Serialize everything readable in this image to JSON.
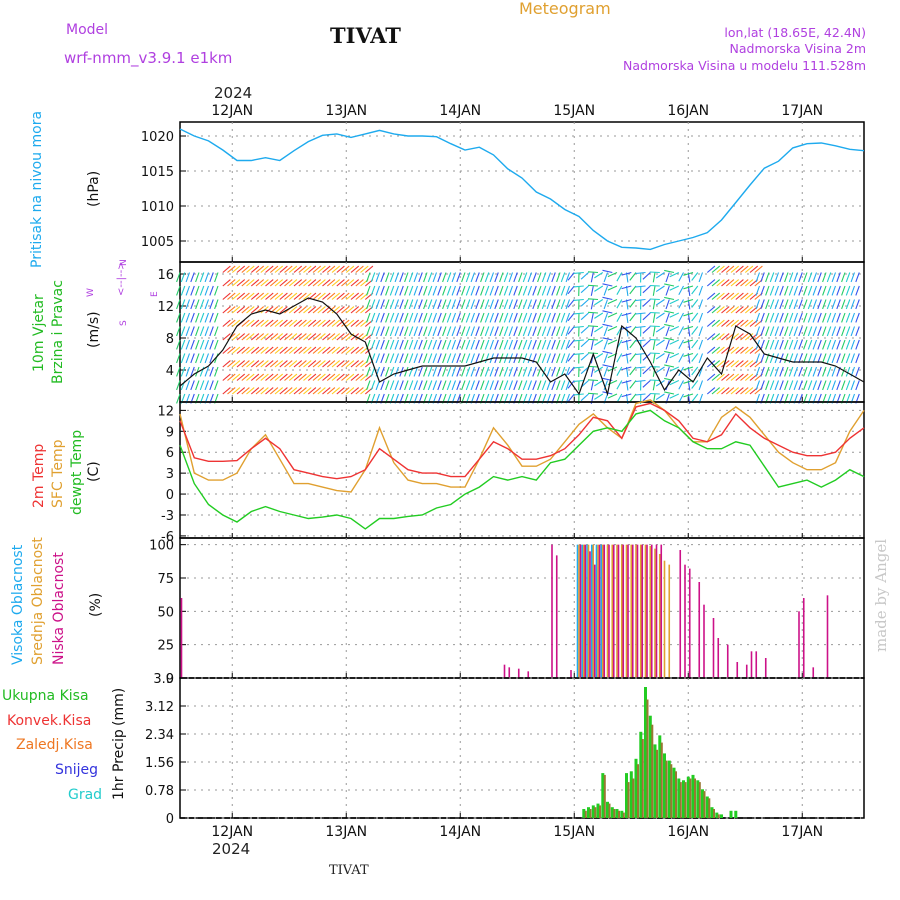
{
  "header": {
    "model_label": "Model",
    "model_name": "wrf-nmm_v3.9.1 e1km",
    "station": "TIVAT",
    "product": "Meteogram",
    "coords": "lon,lat (18.65E, 42.4N)",
    "elev_line": "Nadmorska Visina 2m",
    "model_elev_line": "Nadmorska Visina u modelu 111.528m",
    "year": "2024",
    "footer_station": "TIVAT",
    "credit": "made by Angel"
  },
  "colors": {
    "pressure": "#1eaaee",
    "temp2m": "#ee3333",
    "sfc": "#e0a030",
    "dewpt": "#22cc22",
    "cloud_high": "#1eaaee",
    "cloud_mid": "#e0a030",
    "cloud_low": "#cc1188",
    "rain_total": "#22cc22",
    "rain_conv": "#ee3333",
    "rain_frz": "#ee7722",
    "snow": "#3333dd",
    "hail": "#22cccc",
    "label_purple": "#b040e0",
    "title_orange": "#e0a030"
  },
  "chart_data": [
    {
      "type": "line",
      "panel": "pressure",
      "ylabel": "Pritisak na nivou mora",
      "unit": "(hPa)",
      "x_tick_labels": [
        "12JAN",
        "13JAN",
        "14JAN",
        "15JAN",
        "16JAN",
        "17JAN"
      ],
      "x_start": "2024-01-11 13:00",
      "x_end": "2024-01-17 13:00",
      "ylim": [
        1002,
        1022
      ],
      "yticks": [
        1005,
        1010,
        1015,
        1020
      ],
      "grid": true,
      "series": [
        {
          "x": [
            0,
            3,
            6,
            9,
            12,
            15,
            18,
            21,
            24,
            27,
            30,
            33,
            36,
            39,
            42,
            45,
            48,
            51,
            54,
            57,
            60,
            63,
            66,
            69,
            72,
            75,
            78,
            81,
            84,
            87,
            90,
            93,
            96,
            99,
            102,
            105,
            108,
            111,
            114,
            117,
            120,
            123,
            126,
            129,
            132,
            135,
            138,
            141,
            144
          ],
          "values": [
            1021.0,
            1020.0,
            1019.3,
            1018.0,
            1016.5,
            1016.5,
            1016.9,
            1016.5,
            1017.9,
            1019.2,
            1020.1,
            1020.3,
            1019.8,
            1020.3,
            1020.8,
            1020.3,
            1020.0,
            1020.0,
            1019.9,
            1018.9,
            1018.0,
            1018.4,
            1017.3,
            1015.3,
            1014.0,
            1012.0,
            1011.0,
            1009.5,
            1008.5,
            1006.5,
            1005.0,
            1004.1,
            1004.0,
            1003.8,
            1004.5,
            1005.0,
            1005.5,
            1006.2,
            1008.0,
            1010.5,
            1013.0,
            1015.4,
            1016.4,
            1018.3,
            1018.9,
            1019.0,
            1018.6,
            1018.1,
            1017.9
          ]
        }
      ]
    },
    {
      "type": "line",
      "panel": "wind",
      "ylabel": [
        "10m Vjetar",
        "Brzina i Pravac"
      ],
      "unit": "(m/s)",
      "compass": [
        "N",
        "S",
        "E",
        "W"
      ],
      "ylim": [
        0,
        17.5
      ],
      "yticks": [
        4,
        8,
        12,
        16
      ],
      "grid": true,
      "series": [
        {
          "name": "speed",
          "x": [
            0,
            3,
            6,
            9,
            12,
            15,
            18,
            21,
            24,
            27,
            30,
            33,
            36,
            39,
            42,
            45,
            48,
            51,
            54,
            57,
            60,
            63,
            66,
            69,
            72,
            75,
            78,
            81,
            84,
            87,
            90,
            93,
            96,
            99,
            102,
            105,
            108,
            111,
            114,
            117,
            120,
            123,
            126,
            129,
            132,
            135,
            138,
            141,
            144
          ],
          "values": [
            2.0,
            3.5,
            4.5,
            6.5,
            9.5,
            11.0,
            11.5,
            11.0,
            12.0,
            13.0,
            12.5,
            11.0,
            8.5,
            7.5,
            2.5,
            3.5,
            4.0,
            4.5,
            4.5,
            4.5,
            4.5,
            5.0,
            5.5,
            5.5,
            5.5,
            5.0,
            2.5,
            3.5,
            1.0,
            6.0,
            1.0,
            9.5,
            8.0,
            5.0,
            1.5,
            4.0,
            2.5,
            5.5,
            3.5,
            9.5,
            8.5,
            6.0,
            5.5,
            5.0,
            5.0,
            5.0,
            4.5,
            3.5,
            2.5
          ]
        }
      ]
    },
    {
      "type": "line",
      "panel": "temperature",
      "ylabel": [
        "2m Temp",
        "SFC Temp",
        "dewpt Temp"
      ],
      "unit": "(C)",
      "ylim": [
        -6.3,
        13.2
      ],
      "yticks": [
        -6,
        -3,
        0,
        3,
        6,
        9,
        12
      ],
      "grid": true,
      "series": [
        {
          "name": "2m Temp",
          "x": [
            0,
            3,
            6,
            9,
            12,
            15,
            18,
            21,
            24,
            27,
            30,
            33,
            36,
            39,
            42,
            45,
            48,
            51,
            54,
            57,
            60,
            63,
            66,
            69,
            72,
            75,
            78,
            81,
            84,
            87,
            90,
            93,
            96,
            99,
            102,
            105,
            108,
            111,
            114,
            117,
            120,
            123,
            126,
            129,
            132,
            135,
            138,
            141,
            144
          ],
          "values": [
            10.5,
            5.2,
            4.7,
            4.7,
            4.8,
            6.5,
            8.0,
            6.5,
            3.5,
            3.0,
            2.5,
            2.2,
            2.5,
            3.5,
            6.5,
            5.0,
            3.5,
            3.0,
            3.0,
            2.5,
            2.5,
            5.0,
            7.5,
            6.5,
            5.0,
            5.0,
            5.5,
            6.5,
            8.5,
            11.0,
            10.5,
            8.0,
            12.5,
            13.0,
            12.0,
            10.5,
            8.0,
            7.5,
            8.5,
            11.5,
            9.5,
            8.0,
            7.0,
            6.0,
            5.5,
            5.5,
            6.0,
            8.0,
            9.5
          ]
        },
        {
          "name": "SFC Temp",
          "x": [
            0,
            3,
            6,
            9,
            12,
            15,
            18,
            21,
            24,
            27,
            30,
            33,
            36,
            39,
            42,
            45,
            48,
            51,
            54,
            57,
            60,
            63,
            66,
            69,
            72,
            75,
            78,
            81,
            84,
            87,
            90,
            93,
            96,
            99,
            102,
            105,
            108,
            111,
            114,
            117,
            120,
            123,
            126,
            129,
            132,
            135,
            138,
            141,
            144
          ],
          "values": [
            11.5,
            3.0,
            2.0,
            2.0,
            3.0,
            6.5,
            8.5,
            5.0,
            1.5,
            1.5,
            1.0,
            0.5,
            0.3,
            3.5,
            9.5,
            4.5,
            2.0,
            1.5,
            1.5,
            1.0,
            1.0,
            5.0,
            9.5,
            7.0,
            4.0,
            4.0,
            5.0,
            7.5,
            10.0,
            11.5,
            9.5,
            8.0,
            13.0,
            13.5,
            12.0,
            9.5,
            7.5,
            7.5,
            11.0,
            12.5,
            11.0,
            8.5,
            6.0,
            4.5,
            3.5,
            3.5,
            4.5,
            9.0,
            12.0
          ]
        },
        {
          "name": "dewpt Temp",
          "x": [
            0,
            3,
            6,
            9,
            12,
            15,
            18,
            21,
            24,
            27,
            30,
            33,
            36,
            39,
            42,
            45,
            48,
            51,
            54,
            57,
            60,
            63,
            66,
            69,
            72,
            75,
            78,
            81,
            84,
            87,
            90,
            93,
            96,
            99,
            102,
            105,
            108,
            111,
            114,
            117,
            120,
            123,
            126,
            129,
            132,
            135,
            138,
            141,
            144
          ],
          "values": [
            7.0,
            1.5,
            -1.5,
            -3.0,
            -4.0,
            -2.5,
            -1.8,
            -2.5,
            -3.0,
            -3.5,
            -3.3,
            -3.0,
            -3.5,
            -5.0,
            -3.5,
            -3.5,
            -3.2,
            -3.0,
            -2.0,
            -1.5,
            0.0,
            1.0,
            2.5,
            2.0,
            2.5,
            2.0,
            4.5,
            5.0,
            7.0,
            9.0,
            9.5,
            9.0,
            11.5,
            12.0,
            10.5,
            9.5,
            7.5,
            6.5,
            6.5,
            7.5,
            7.0,
            4.0,
            1.0,
            1.5,
            2.0,
            1.0,
            2.0,
            3.5,
            2.5
          ]
        }
      ]
    },
    {
      "type": "bar",
      "panel": "cloud",
      "ylabel": [
        "Visoka Oblacnost",
        "Srednja Oblacnost",
        "Niska Oblacnost"
      ],
      "unit": "(%)",
      "ylim": [
        0,
        105
      ],
      "yticks": [
        0,
        25,
        50,
        75,
        100
      ],
      "grid": true,
      "series": [
        {
          "name": "Visoka Oblacnost",
          "x": [
            84,
            85,
            86,
            87,
            88,
            89
          ],
          "values": [
            100,
            100,
            100,
            100,
            100,
            100
          ]
        },
        {
          "name": "Srednja Oblacnost",
          "x": [
            84,
            85,
            86,
            87,
            88,
            89,
            90,
            91,
            92,
            93,
            94,
            95,
            96,
            97,
            98,
            99,
            100,
            101,
            102,
            103
          ],
          "values": [
            100,
            100,
            100,
            100,
            100,
            100,
            100,
            100,
            100,
            100,
            100,
            100,
            100,
            100,
            100,
            99,
            97,
            93,
            88,
            85
          ]
        },
        {
          "name": "Niska Oblacnost",
          "x": [
            0,
            68,
            69,
            71,
            73,
            78,
            79,
            82,
            84,
            85,
            86,
            87,
            88,
            89,
            90,
            91,
            92,
            93,
            94,
            95,
            96,
            97,
            98,
            99,
            100,
            101,
            105,
            106,
            107,
            109,
            110,
            112,
            113,
            115,
            117,
            119,
            120,
            121,
            123,
            130,
            131,
            133,
            136
          ],
          "values": [
            60,
            10,
            8,
            7,
            5,
            100,
            92,
            6,
            100,
            100,
            95,
            85,
            100,
            100,
            100,
            100,
            100,
            100,
            100,
            100,
            100,
            100,
            100,
            100,
            100,
            100,
            96,
            85,
            82,
            72,
            55,
            45,
            30,
            25,
            12,
            10,
            20,
            20,
            15,
            50,
            60,
            8,
            62
          ]
        }
      ]
    },
    {
      "type": "bar",
      "panel": "precip",
      "ylabel": "1hr Precip",
      "unit": "(mm)",
      "legend": [
        "Ukupna Kisa",
        "Konvek.Kisa",
        "Zaledj.Kisa",
        "Snijeg",
        "Grad"
      ],
      "ylim": [
        0,
        3.9
      ],
      "yticks": [
        0,
        0.78,
        1.56,
        2.34,
        3.12,
        3.9
      ],
      "grid": true,
      "series": [
        {
          "name": "Ukupna Kisa",
          "x": [
            85,
            86,
            87,
            88,
            89,
            90,
            91,
            92,
            93,
            94,
            95,
            96,
            97,
            98,
            99,
            100,
            101,
            102,
            103,
            104,
            105,
            106,
            107,
            108,
            109,
            110,
            111,
            112,
            113,
            114,
            116,
            117
          ],
          "values": [
            0.25,
            0.3,
            0.35,
            0.4,
            1.25,
            0.45,
            0.3,
            0.25,
            0.2,
            1.25,
            1.3,
            1.65,
            2.4,
            3.65,
            2.85,
            2.05,
            2.3,
            1.8,
            1.6,
            1.4,
            1.1,
            1.05,
            1.15,
            1.2,
            1.05,
            0.8,
            0.6,
            0.3,
            0.15,
            0.1,
            0.2,
            0.2
          ]
        },
        {
          "name": "Konvek.Kisa",
          "x": [
            85,
            86,
            87,
            88,
            89,
            90,
            91,
            92,
            93,
            94,
            95,
            96,
            97,
            98,
            99,
            100,
            101,
            102,
            103,
            104,
            105,
            106,
            107,
            108,
            109,
            110,
            111,
            112,
            113
          ],
          "values": [
            0.2,
            0.25,
            0.3,
            0.35,
            1.2,
            0.4,
            0.25,
            0.2,
            0.15,
            1.0,
            1.1,
            1.5,
            2.2,
            3.3,
            2.6,
            1.9,
            2.1,
            1.6,
            1.5,
            1.3,
            1.0,
            1.0,
            1.1,
            1.1,
            1.0,
            0.75,
            0.55,
            0.25,
            0.1
          ]
        }
      ]
    }
  ]
}
